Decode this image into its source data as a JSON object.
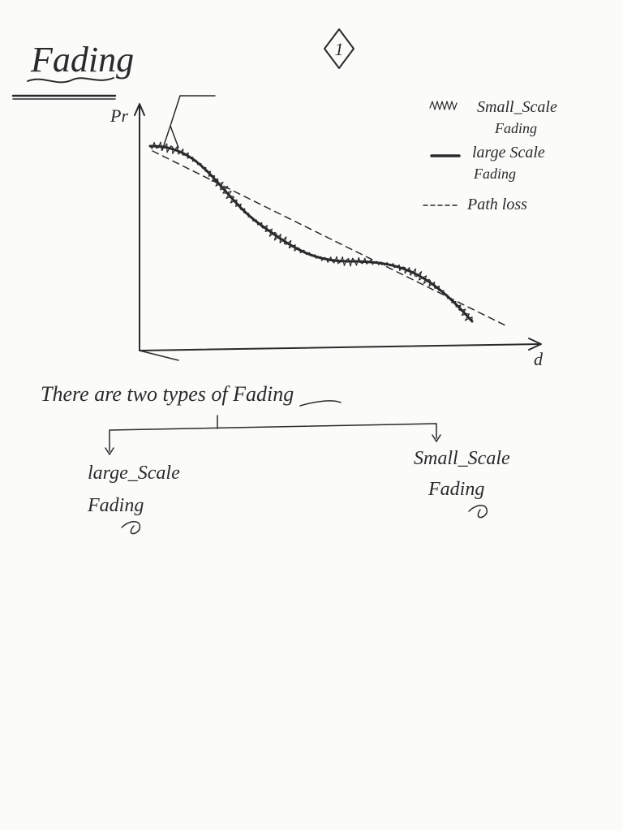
{
  "header": {
    "title": "Fading",
    "page_number": "1"
  },
  "graph": {
    "y_axis_label": "Pr",
    "x_axis_label": "d",
    "legend": [
      [
        "Small_Scale",
        "Fading"
      ],
      [
        "large Scale",
        "Fading"
      ],
      [
        "Path loss"
      ]
    ]
  },
  "body": {
    "statement": "There are two types of Fading",
    "branches": [
      [
        "large_Scale",
        "Fading"
      ],
      [
        "Small_Scale",
        "Fading"
      ]
    ]
  }
}
